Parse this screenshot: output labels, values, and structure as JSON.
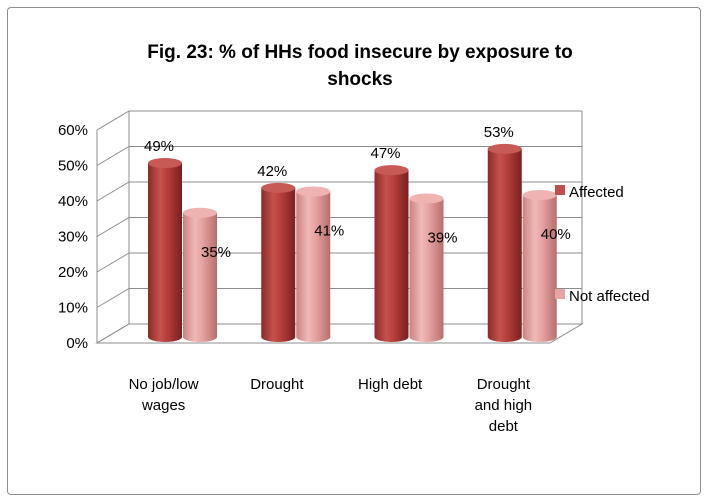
{
  "chart_data": {
    "type": "bar",
    "title": "Fig. 23: % of HHs food insecure by exposure to shocks",
    "title_lines": [
      "Fig. 23: % of HHs food insecure by exposure to",
      "shocks"
    ],
    "categories": [
      "No job/low wages",
      "Drought",
      "High debt",
      "Drought and high debt"
    ],
    "category_lines": [
      [
        "No job/low",
        "wages"
      ],
      [
        "Drought"
      ],
      [
        "High debt"
      ],
      [
        "Drought",
        "and high",
        "debt"
      ]
    ],
    "series": [
      {
        "name": "Affected",
        "values": [
          0.49,
          0.42,
          0.47,
          0.53
        ],
        "labels": [
          "49%",
          "42%",
          "47%",
          "53%"
        ],
        "color": "#c0504d"
      },
      {
        "name": "Not affected",
        "values": [
          0.35,
          0.41,
          0.39,
          0.4
        ],
        "labels": [
          "35%",
          "41%",
          "39%",
          "40%"
        ],
        "color": "#e6a5a3"
      }
    ],
    "y_ticks": [
      "0%",
      "10%",
      "20%",
      "30%",
      "40%",
      "50%",
      "60%"
    ],
    "ylim": [
      0,
      0.6
    ],
    "style": "3d-cylinder",
    "grid": true,
    "legend_position": "right"
  }
}
